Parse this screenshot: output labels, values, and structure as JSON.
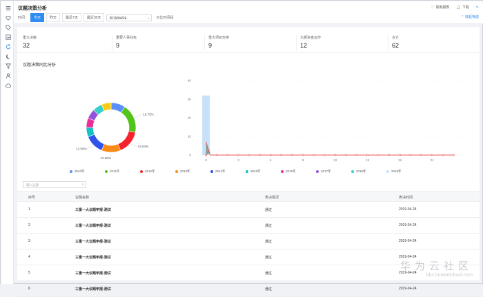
{
  "header": {
    "title": "议题决策分析",
    "actions": [
      {
        "label": "常用报表",
        "icon": "heart-icon"
      },
      {
        "label": "下载",
        "icon": "user-icon"
      },
      {
        "label": "",
        "icon": "pin-icon"
      }
    ],
    "filter_label": "时间：",
    "segments": [
      {
        "label": "今天",
        "active": true
      },
      {
        "label": "昨天",
        "active": false
      },
      {
        "label": "最近7天",
        "active": false
      },
      {
        "label": "最近30天",
        "active": false
      }
    ],
    "date_value": "2019/04/24",
    "compare_label": "对比时间段",
    "expand_label": "收起筛选"
  },
  "stats": [
    {
      "label": "重大决策",
      "value": "32"
    },
    {
      "label": "重要人事任免",
      "value": "9"
    },
    {
      "label": "重大项目安排",
      "value": "9"
    },
    {
      "label": "大额资金运作",
      "value": "12"
    },
    {
      "label": "合计",
      "value": "62"
    }
  ],
  "section_title": "议题决策同比分析",
  "chart_data": [
    {
      "type": "pie",
      "donut": true,
      "labels": [
        "2010年",
        "2011年",
        "2012年",
        "2013年",
        "2014年",
        "2015年",
        "2016年",
        "2017年",
        "2018年",
        "2019年"
      ],
      "values": [
        9.38,
        18.75,
        15.63,
        12.5,
        12.5,
        6.25,
        6.25,
        6.25,
        6.25,
        6.25
      ],
      "colors": [
        "#5b8ff9",
        "#52c41a",
        "#f5222d",
        "#fa8c16",
        "#2f54eb",
        "#13c2c2",
        "#eb2f96",
        "#9254de",
        "#36cfc9",
        "#facc14"
      ],
      "data_labels": [
        {
          "index": 1,
          "text": "18.75%"
        },
        {
          "index": 2,
          "text": "15.63%"
        },
        {
          "index": 3,
          "text": "12.50%"
        },
        {
          "index": 4,
          "text": "12.50%"
        }
      ]
    },
    {
      "type": "bar",
      "x": [
        0,
        3,
        6,
        9,
        12,
        15,
        18,
        21
      ],
      "y_ticks": [
        0,
        10,
        20,
        30,
        40
      ],
      "ylim": [
        0,
        40
      ],
      "xlim": [
        -1,
        24
      ],
      "bar": {
        "x": 0,
        "value": 32,
        "color": "#c9e1f8"
      },
      "line": {
        "color": "#e8595a",
        "x_start": 0,
        "x_end": 23,
        "value": 0
      },
      "spike": {
        "x": 0,
        "value": 7
      }
    }
  ],
  "legend": [
    {
      "label": "2010年",
      "color": "#5b8ff9"
    },
    {
      "label": "2011年",
      "color": "#52c41a"
    },
    {
      "label": "2012年",
      "color": "#f5222d"
    },
    {
      "label": "2013年",
      "color": "#fa8c16"
    },
    {
      "label": "2014年",
      "color": "#2f54eb"
    },
    {
      "label": "2015年",
      "color": "#13c2c2"
    },
    {
      "label": "2016年",
      "color": "#eb2f96"
    },
    {
      "label": "2017年",
      "color": "#9254de"
    },
    {
      "label": "2018年",
      "color": "#36cfc9"
    },
    {
      "label": "2019年",
      "color": "#c9e1f8"
    }
  ],
  "search": {
    "placeholder": "输入议题"
  },
  "table": {
    "headers": [
      "序号",
      "议题名称",
      "表决情况",
      "表决时间"
    ],
    "rows": [
      [
        "1",
        "三重一大议题申报-测试",
        "通过",
        "2019-04-24"
      ],
      [
        "2",
        "三重一大议题申报-测试",
        "通过",
        "2019-04-24"
      ],
      [
        "3",
        "三重一大议题申报-测试",
        "通过",
        "2019-04-24"
      ],
      [
        "4",
        "三重一大议题申报-测试",
        "通过",
        "2019-04-24"
      ],
      [
        "5",
        "三重一大议题申报-测试",
        "通过",
        "2019-04-24"
      ],
      [
        "6",
        "三重一大议题申报-测试",
        "通过",
        "2019-04-24"
      ]
    ]
  },
  "watermark": {
    "line1": "华为云社区",
    "line2": "bbs.huaweicloud.com"
  },
  "rail_icons": [
    "menu-icon",
    "heart-icon",
    "tag-icon",
    "chart-icon",
    "refresh-icon",
    "moon-icon",
    "filter-icon",
    "person-icon",
    "cloud-icon"
  ]
}
